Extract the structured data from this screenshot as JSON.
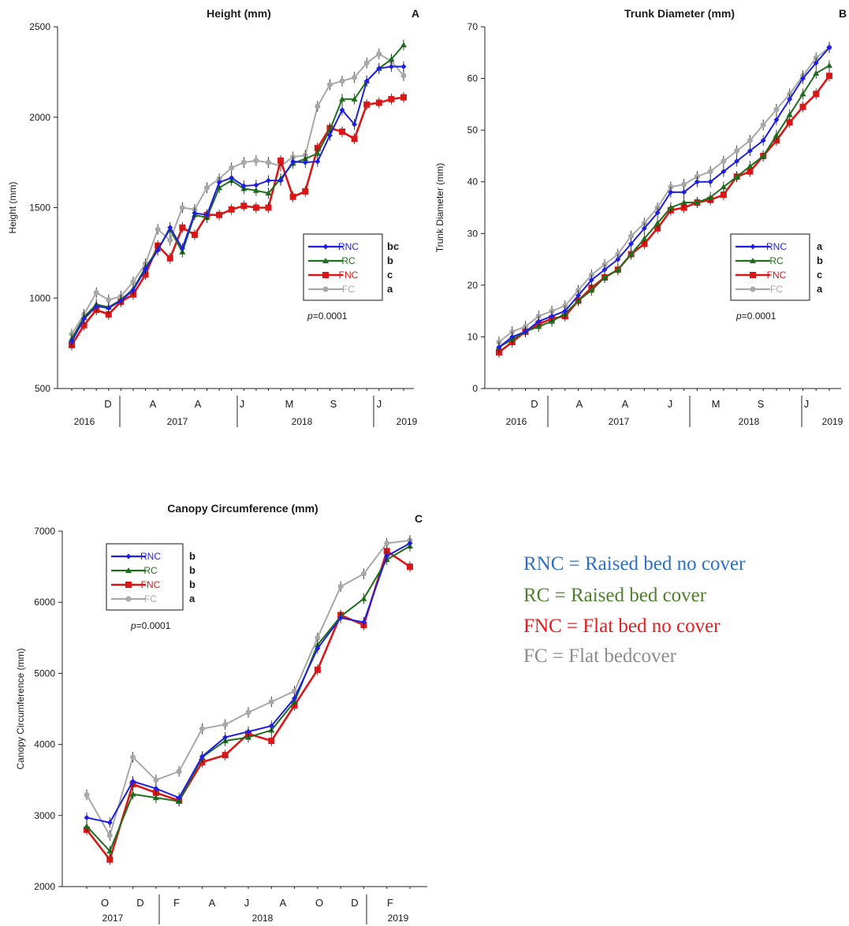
{
  "colors": {
    "RNC": "#1f1fe0",
    "RC": "#1e6e1e",
    "FNC": "#d81818",
    "FC": "#a8a8a8"
  },
  "key": {
    "items": [
      {
        "text": "RNC = Raised bed no cover",
        "color": "#2e6fc4"
      },
      {
        "text": "RC = Raised  bed cover",
        "color": "#4f7f2f"
      },
      {
        "text": "FNC = Flat bed no cover",
        "color": "#e81c1c"
      },
      {
        "text": "FC = Flat  bedcover",
        "color": "#8c8c8c"
      }
    ]
  },
  "chart_data": [
    {
      "type": "line",
      "title": "Height (mm)",
      "panel_letter": "A",
      "ylabel": "Height (mm)",
      "ylim": [
        500,
        2500
      ],
      "yticks": [
        500,
        1000,
        1500,
        2000,
        2500
      ],
      "month_labels": [
        "D",
        "A",
        "A",
        "J",
        "M",
        "S",
        "J"
      ],
      "year_labels": [
        "2016",
        "2017",
        "2018",
        "2019"
      ],
      "legend_position": "center-right",
      "p_value": "=0.0001",
      "series": [
        {
          "name": "RNC",
          "letter": "bc",
          "values": [
            760,
            885,
            955,
            945,
            985,
            1045,
            1160,
            1265,
            1390,
            1275,
            1470,
            1460,
            1640,
            1665,
            1620,
            1625,
            1650,
            1650,
            1755,
            1750,
            1755,
            1900,
            2040,
            1960,
            2200,
            2270,
            2280,
            2280
          ]
        },
        {
          "name": "RC",
          "letter": "b",
          "values": [
            775,
            895,
            965,
            950,
            990,
            1050,
            1170,
            1270,
            1380,
            1255,
            1460,
            1445,
            1610,
            1650,
            1605,
            1595,
            1580,
            1660,
            1745,
            1770,
            1800,
            1930,
            2100,
            2100,
            2200,
            2270,
            2320,
            2400
          ]
        },
        {
          "name": "FNC",
          "letter": "c",
          "values": [
            740,
            850,
            935,
            910,
            980,
            1020,
            1130,
            1290,
            1220,
            1390,
            1350,
            1460,
            1460,
            1490,
            1510,
            1500,
            1500,
            1760,
            1560,
            1590,
            1830,
            1940,
            1920,
            1880,
            2070,
            2080,
            2100,
            2110
          ]
        },
        {
          "name": "FC",
          "letter": "a",
          "values": [
            800,
            910,
            1030,
            990,
            1010,
            1090,
            1190,
            1380,
            1320,
            1500,
            1490,
            1610,
            1660,
            1720,
            1750,
            1760,
            1750,
            1730,
            1780,
            1790,
            2060,
            2180,
            2200,
            2220,
            2300,
            2350,
            2310,
            2230
          ]
        }
      ]
    },
    {
      "type": "line",
      "title": "Trunk Diameter (mm)",
      "panel_letter": "B",
      "ylabel": "Trunk Diameter (mm)",
      "ylim": [
        0,
        70
      ],
      "yticks": [
        0,
        10,
        20,
        30,
        40,
        50,
        60,
        70
      ],
      "month_labels": [
        "D",
        "A",
        "A",
        "J",
        "M",
        "S",
        "J"
      ],
      "year_labels": [
        "2016",
        "2017",
        "2018",
        "2019"
      ],
      "legend_position": "center-right",
      "p_value": "=0.0001",
      "series": [
        {
          "name": "RNC",
          "letter": "a",
          "values": [
            8,
            10,
            11,
            13,
            14,
            15,
            18,
            21,
            23,
            25,
            28,
            31,
            34,
            38,
            38,
            40,
            40,
            42,
            44,
            46,
            48,
            52,
            56,
            60,
            63,
            66
          ]
        },
        {
          "name": "RC",
          "letter": "b",
          "values": [
            8,
            9.5,
            11,
            12,
            13,
            14.5,
            17,
            19,
            21.5,
            23,
            26,
            29,
            32,
            35,
            36,
            36,
            37,
            39,
            41,
            43,
            45,
            49,
            53,
            57,
            61,
            62.5
          ]
        },
        {
          "name": "FNC",
          "letter": "c",
          "values": [
            7,
            9,
            11,
            12.5,
            13.5,
            14,
            17,
            19.5,
            21.5,
            23,
            26,
            28,
            31,
            34.5,
            35,
            36,
            36.5,
            37.5,
            41,
            42,
            45,
            48,
            51.5,
            54.5,
            57,
            60.5
          ]
        },
        {
          "name": "FC",
          "letter": "a",
          "values": [
            9,
            11,
            12,
            14,
            15,
            16,
            19,
            22,
            24,
            26,
            29.5,
            32,
            35,
            39,
            39.5,
            41,
            42,
            44,
            46,
            48,
            51,
            54,
            57,
            60.5,
            64,
            66
          ]
        }
      ]
    },
    {
      "type": "line",
      "title": "Canopy Circumference (mm)",
      "panel_letter": "C",
      "ylabel": "Canopy Circumference (mm)",
      "ylim": [
        2000,
        7000
      ],
      "yticks": [
        2000,
        3000,
        4000,
        5000,
        6000,
        7000
      ],
      "month_labels": [
        "O",
        "D",
        "F",
        "A",
        "J",
        "A",
        "O",
        "D",
        "F"
      ],
      "year_labels": [
        "2017",
        "2018",
        "2019"
      ],
      "legend_position": "top-left",
      "p_value": "=0.0001",
      "series": [
        {
          "name": "RNC",
          "letter": "b",
          "values": [
            2970,
            2900,
            3480,
            3380,
            3250,
            3830,
            4100,
            4180,
            4260,
            4650,
            5350,
            5780,
            5720,
            6650,
            6830
          ]
        },
        {
          "name": "RC",
          "letter": "b",
          "values": [
            2850,
            2500,
            3300,
            3250,
            3200,
            3820,
            4050,
            4100,
            4200,
            4600,
            5400,
            5800,
            6050,
            6600,
            6790
          ]
        },
        {
          "name": "FNC",
          "letter": "b",
          "values": [
            2800,
            2380,
            3440,
            3320,
            3210,
            3750,
            3850,
            4150,
            4050,
            4550,
            5050,
            5820,
            5680,
            6720,
            6500
          ]
        },
        {
          "name": "FC",
          "letter": "a",
          "values": [
            3290,
            2720,
            3820,
            3500,
            3620,
            4220,
            4280,
            4450,
            4600,
            4750,
            5500,
            6220,
            6400,
            6830,
            6870
          ]
        }
      ]
    }
  ]
}
